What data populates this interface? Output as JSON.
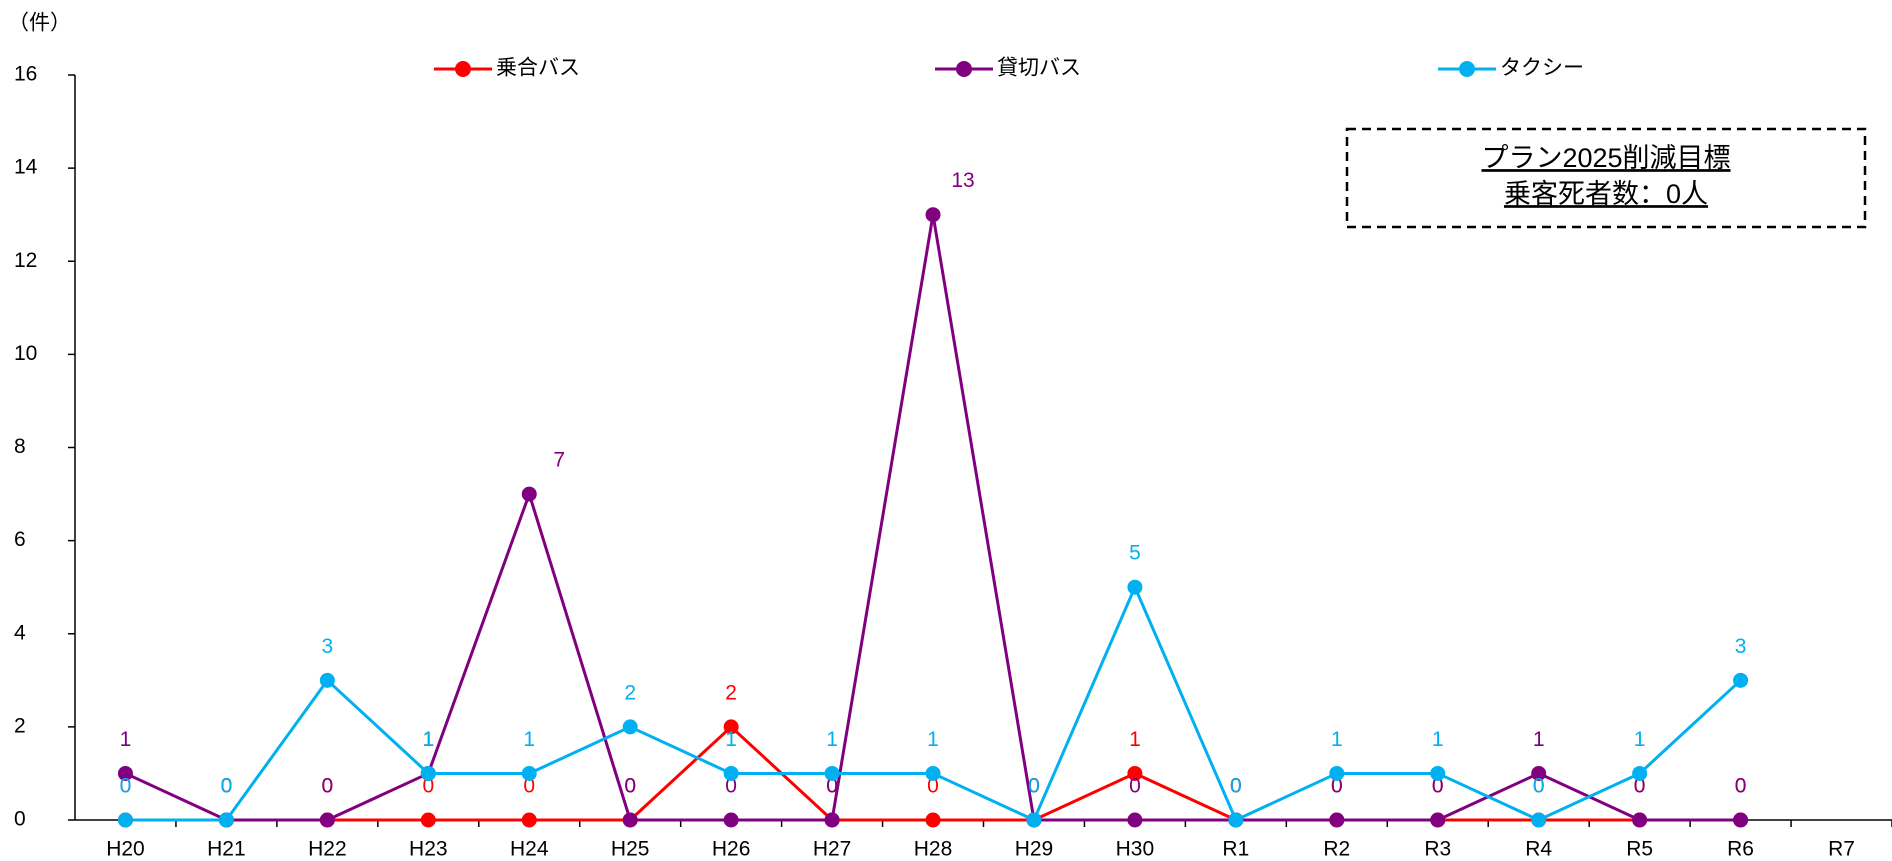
{
  "chart_data": {
    "type": "line",
    "y_unit_label": "（件）",
    "annotation": [
      "プラン2025削減目標",
      "乗客死者数：0人"
    ],
    "categories": [
      "H20",
      "H21",
      "H22",
      "H23",
      "H24",
      "H25",
      "H26",
      "H27",
      "H28",
      "H29",
      "H30",
      "R1",
      "R2",
      "R3",
      "R4",
      "R5",
      "R6",
      "R7"
    ],
    "series": [
      {
        "name": "乗合バス",
        "color": "#ff0000",
        "values": [
          0,
          0,
          0,
          0,
          0,
          0,
          2,
          0,
          0,
          0,
          1,
          0,
          0,
          0,
          0,
          0,
          0,
          null
        ]
      },
      {
        "name": "貸切バス",
        "color": "#800080",
        "values": [
          1,
          0,
          0,
          1,
          7,
          0,
          0,
          0,
          13,
          0,
          0,
          0,
          0,
          0,
          1,
          0,
          0,
          null
        ]
      },
      {
        "name": "タクシー",
        "color": "#00b0f0",
        "values": [
          0,
          0,
          3,
          1,
          1,
          2,
          1,
          1,
          1,
          0,
          5,
          0,
          1,
          1,
          0,
          1,
          3,
          null
        ]
      }
    ],
    "ylim": [
      0,
      16
    ],
    "yticks": [
      0,
      2,
      4,
      6,
      8,
      10,
      12,
      14,
      16
    ],
    "legend": "top"
  }
}
